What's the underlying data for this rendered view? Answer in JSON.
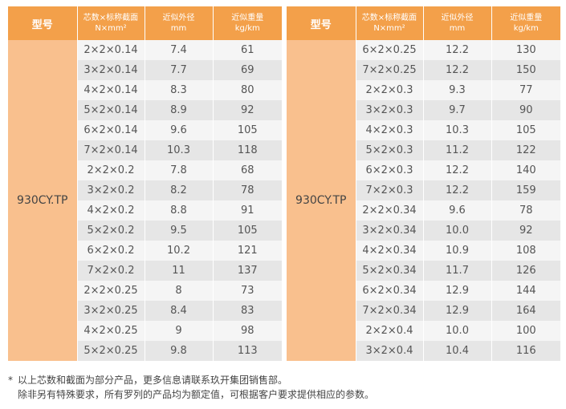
{
  "tables": [
    {
      "headers": {
        "model": "型号",
        "cores_line1": "芯数×标称截面",
        "cores_line2": "N×mm²",
        "diameter_line1": "近似外径",
        "diameter_line2": "mm",
        "weight_line1": "近似重量",
        "weight_line2": "kg/km"
      },
      "model": "930CY.TP",
      "rows": [
        [
          "2×2×0.14",
          "7.4",
          "61"
        ],
        [
          "3×2×0.14",
          "7.7",
          "69"
        ],
        [
          "4×2×0.14",
          "8.3",
          "80"
        ],
        [
          "5×2×0.14",
          "8.9",
          "92"
        ],
        [
          "6×2×0.14",
          "9.6",
          "105"
        ],
        [
          "7×2×0.14",
          "10.3",
          "118"
        ],
        [
          "2×2×0.2",
          "7.8",
          "68"
        ],
        [
          "3×2×0.2",
          "8.2",
          "78"
        ],
        [
          "4×2×0.2",
          "8.8",
          "91"
        ],
        [
          "5×2×0.2",
          "9.5",
          "105"
        ],
        [
          "6×2×0.2",
          "10.2",
          "121"
        ],
        [
          "7×2×0.2",
          "11",
          "137"
        ],
        [
          "2×2×0.25",
          "8",
          "73"
        ],
        [
          "3×2×0.25",
          "8.4",
          "83"
        ],
        [
          "4×2×0.25",
          "9",
          "98"
        ],
        [
          "5×2×0.25",
          "9.8",
          "113"
        ]
      ]
    },
    {
      "headers": {
        "model": "型号",
        "cores_line1": "芯数×标称截面",
        "cores_line2": "N×mm²",
        "diameter_line1": "近似外径",
        "diameter_line2": "mm",
        "weight_line1": "近似重量",
        "weight_line2": "kg/km"
      },
      "model": "930CY.TP",
      "rows": [
        [
          "6×2×0.25",
          "12.2",
          "130"
        ],
        [
          "7×2×0.25",
          "12.2",
          "150"
        ],
        [
          "2×2×0.3",
          "9.3",
          "77"
        ],
        [
          "3×2×0.3",
          "9.7",
          "90"
        ],
        [
          "4×2×0.3",
          "10.3",
          "105"
        ],
        [
          "5×2×0.3",
          "11.2",
          "122"
        ],
        [
          "6×2×0.3",
          "12.2",
          "140"
        ],
        [
          "7×2×0.3",
          "12.2",
          "159"
        ],
        [
          "2×2×0.34",
          "9.6",
          "78"
        ],
        [
          "3×2×0.34",
          "10.0",
          "92"
        ],
        [
          "4×2×0.34",
          "10.9",
          "108"
        ],
        [
          "5×2×0.34",
          "11.7",
          "126"
        ],
        [
          "6×2×0.34",
          "12.9",
          "144"
        ],
        [
          "7×2×0.34",
          "12.9",
          "164"
        ],
        [
          "2×2×0.4",
          "10.0",
          "100"
        ],
        [
          "3×2×0.4",
          "10.4",
          "116"
        ]
      ]
    }
  ],
  "footnote": {
    "star": "*",
    "line1": "以上芯数和截面为部分产品，更多信息请联系玖开集团销售部。",
    "line2": "除非另有特殊要求，所有罗列的产品均为额定值，可根据客户要求提供相应的参数。"
  },
  "colors": {
    "header_bg": "#f3a04a",
    "model_cell_bg": "#f9c08e",
    "row_light": "#f5f5f5",
    "row_dark": "#e6e6e6"
  }
}
